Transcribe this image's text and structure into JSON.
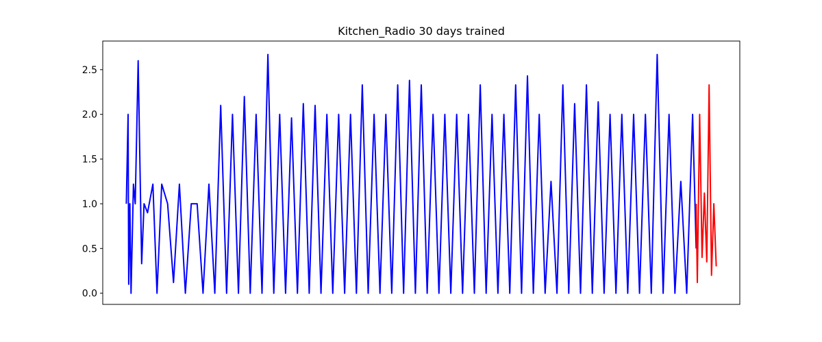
{
  "chart_data": {
    "type": "line",
    "title": "Kitchen_Radio 30 days trained",
    "xlabel": "",
    "ylabel": "",
    "ylim": [
      -0.125,
      2.82
    ],
    "yticks": [
      0.0,
      0.5,
      1.0,
      1.5,
      2.0,
      2.5
    ],
    "ytick_labels": [
      "0.0",
      "0.5",
      "1.0",
      "1.5",
      "2.0",
      "2.5"
    ],
    "xlim": [
      -0.04,
      1.04
    ],
    "grid": false,
    "legend": "none",
    "series": [
      {
        "color": "#0000ff",
        "x": [
          0.0,
          0.003,
          0.004,
          0.006,
          0.008,
          0.012,
          0.015,
          0.02,
          0.026,
          0.03,
          0.036,
          0.045,
          0.052,
          0.06,
          0.07,
          0.08,
          0.09,
          0.1,
          0.11,
          0.12,
          0.13,
          0.14,
          0.15,
          0.16,
          0.17,
          0.18,
          0.19,
          0.2,
          0.21,
          0.22,
          0.23,
          0.24,
          0.25,
          0.26,
          0.27,
          0.28,
          0.29,
          0.3,
          0.31,
          0.32,
          0.33,
          0.34,
          0.35,
          0.36,
          0.37,
          0.38,
          0.39,
          0.4,
          0.41,
          0.42,
          0.43,
          0.44,
          0.45,
          0.46,
          0.47,
          0.48,
          0.49,
          0.5,
          0.51,
          0.52,
          0.53,
          0.54,
          0.55,
          0.56,
          0.57,
          0.58,
          0.59,
          0.6,
          0.61,
          0.62,
          0.63,
          0.64,
          0.65,
          0.66,
          0.67,
          0.68,
          0.69,
          0.7,
          0.71,
          0.72,
          0.73,
          0.74,
          0.75,
          0.76,
          0.77,
          0.78,
          0.79,
          0.8,
          0.81,
          0.82,
          0.83,
          0.84,
          0.85,
          0.86,
          0.87,
          0.88,
          0.89,
          0.9,
          0.91,
          0.92,
          0.93,
          0.94,
          0.95,
          0.96,
          0.966
        ],
        "y": [
          1.0,
          2.0,
          0.1,
          1.0,
          0.0,
          1.22,
          1.0,
          2.6,
          0.33,
          1.0,
          0.9,
          1.22,
          0.0,
          1.22,
          1.0,
          0.12,
          1.22,
          0.0,
          1.0,
          1.0,
          0.0,
          1.22,
          0.0,
          2.1,
          0.0,
          2.0,
          0.0,
          2.2,
          0.0,
          2.0,
          0.0,
          2.67,
          0.0,
          2.0,
          0.0,
          1.96,
          0.0,
          2.12,
          0.0,
          2.1,
          0.0,
          2.0,
          0.0,
          2.0,
          0.0,
          2.0,
          0.0,
          2.33,
          0.0,
          2.0,
          0.0,
          2.0,
          0.0,
          2.33,
          0.0,
          2.38,
          0.0,
          2.33,
          0.0,
          2.0,
          0.0,
          2.0,
          0.0,
          2.0,
          0.0,
          2.0,
          0.0,
          2.33,
          0.0,
          2.0,
          0.0,
          2.0,
          0.0,
          2.33,
          0.0,
          2.43,
          0.0,
          2.0,
          0.0,
          1.25,
          0.0,
          2.33,
          0.0,
          2.12,
          0.0,
          2.33,
          0.0,
          2.14,
          0.0,
          2.0,
          0.0,
          2.0,
          0.0,
          2.0,
          0.0,
          2.0,
          0.0,
          2.67,
          0.0,
          2.0,
          0.0,
          1.25,
          0.0,
          2.0,
          0.5
        ]
      },
      {
        "color": "#ff0000",
        "x": [
          0.966,
          0.968,
          0.972,
          0.976,
          0.98,
          0.984,
          0.988,
          0.992,
          0.996,
          1.0
        ],
        "y": [
          1.0,
          0.12,
          2.0,
          0.4,
          1.12,
          0.35,
          2.33,
          0.2,
          1.0,
          0.3
        ]
      }
    ]
  }
}
